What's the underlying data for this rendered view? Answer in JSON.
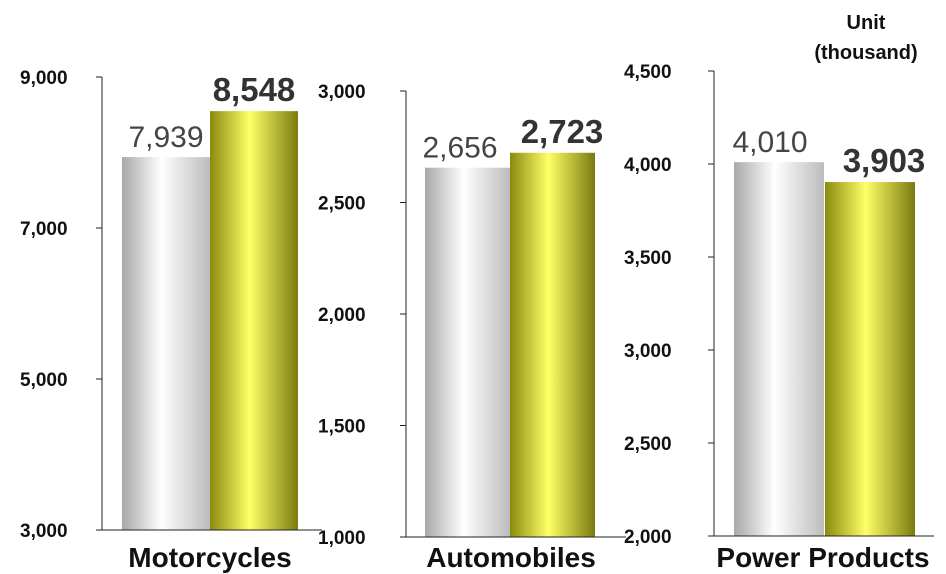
{
  "unit_label_line1": "Unit",
  "unit_label_line2": "(thousand)",
  "colors": {
    "prev_bar": "silver-gradient",
    "curr_bar": "olive-yellow-gradient",
    "text": "#111111"
  },
  "chart_data": [
    {
      "type": "bar",
      "category": "Motorcycles",
      "ylim": [
        3000,
        9000
      ],
      "yticks": [
        "3,000",
        "5,000",
        "7,000",
        "9,000"
      ],
      "ytick_values": [
        3000,
        5000,
        7000,
        9000
      ],
      "values": [
        7939,
        8548
      ],
      "value_labels": [
        "7,939",
        "8,548"
      ]
    },
    {
      "type": "bar",
      "category": "Automobiles",
      "ylim": [
        1000,
        3000
      ],
      "yticks": [
        "1,000",
        "1,500",
        "2,000",
        "2,500",
        "3,000"
      ],
      "ytick_values": [
        1000,
        1500,
        2000,
        2500,
        3000
      ],
      "values": [
        2656,
        2723
      ],
      "value_labels": [
        "2,656",
        "2,723"
      ]
    },
    {
      "type": "bar",
      "category": "Power Products",
      "ylim": [
        2000,
        4500
      ],
      "yticks": [
        "2,000",
        "2,500",
        "3,000",
        "3,500",
        "4,000",
        "4,500"
      ],
      "ytick_values": [
        2000,
        2500,
        3000,
        3500,
        4000,
        4500
      ],
      "values": [
        4010,
        3903
      ],
      "value_labels": [
        "4,010",
        "3,903"
      ]
    }
  ]
}
